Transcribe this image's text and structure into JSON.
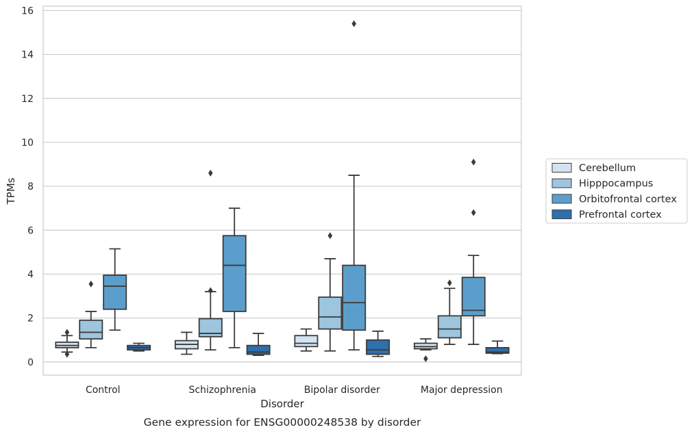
{
  "chart_data": {
    "type": "box",
    "caption": "Gene expression for ENSG00000248538 by disorder",
    "xlabel": "Disorder",
    "ylabel": "TPMs",
    "ylim": [
      -0.6,
      16.2
    ],
    "yticks": [
      0,
      2,
      4,
      6,
      8,
      10,
      12,
      14,
      16
    ],
    "grid": true,
    "legend_position": "right",
    "categories": [
      "Control",
      "Schizophrenia",
      "Bipolar disorder",
      "Major depression"
    ],
    "series": [
      {
        "name": "Cerebellum",
        "color": "#d4e3f1",
        "boxes": [
          {
            "whisker_low": 0.45,
            "q1": 0.65,
            "median": 0.75,
            "q3": 0.9,
            "whisker_high": 1.2,
            "outliers": [
              0.35,
              1.35
            ]
          },
          {
            "whisker_low": 0.35,
            "q1": 0.6,
            "median": 0.8,
            "q3": 0.97,
            "whisker_high": 1.35,
            "outliers": []
          },
          {
            "whisker_low": 0.5,
            "q1": 0.7,
            "median": 0.85,
            "q3": 1.2,
            "whisker_high": 1.5,
            "outliers": []
          },
          {
            "whisker_low": 0.55,
            "q1": 0.6,
            "median": 0.7,
            "q3": 0.85,
            "whisker_high": 1.05,
            "outliers": [
              0.15
            ]
          }
        ]
      },
      {
        "name": "Hipppocampus",
        "color": "#9dc5de",
        "boxes": [
          {
            "whisker_low": 0.65,
            "q1": 1.05,
            "median": 1.35,
            "q3": 1.9,
            "whisker_high": 2.3,
            "outliers": [
              3.55
            ]
          },
          {
            "whisker_low": 0.55,
            "q1": 1.15,
            "median": 1.3,
            "q3": 1.97,
            "whisker_high": 3.2,
            "outliers": [
              3.25,
              8.6
            ]
          },
          {
            "whisker_low": 0.5,
            "q1": 1.5,
            "median": 2.05,
            "q3": 2.95,
            "whisker_high": 4.7,
            "outliers": [
              5.75
            ]
          },
          {
            "whisker_low": 0.8,
            "q1": 1.1,
            "median": 1.5,
            "q3": 2.1,
            "whisker_high": 3.35,
            "outliers": [
              3.6
            ]
          }
        ]
      },
      {
        "name": "Orbitofrontal cortex",
        "color": "#5c9ecb",
        "boxes": [
          {
            "whisker_low": 1.45,
            "q1": 2.4,
            "median": 3.45,
            "q3": 3.95,
            "whisker_high": 5.15,
            "outliers": []
          },
          {
            "whisker_low": 0.65,
            "q1": 2.3,
            "median": 4.4,
            "q3": 5.75,
            "whisker_high": 7.0,
            "outliers": []
          },
          {
            "whisker_low": 0.55,
            "q1": 1.45,
            "median": 2.7,
            "q3": 4.4,
            "whisker_high": 8.5,
            "outliers": [
              15.4
            ]
          },
          {
            "whisker_low": 0.8,
            "q1": 2.1,
            "median": 2.35,
            "q3": 3.85,
            "whisker_high": 4.85,
            "outliers": [
              6.8,
              9.1
            ]
          }
        ]
      },
      {
        "name": "Prefrontal cortex",
        "color": "#2f6fac",
        "boxes": [
          {
            "whisker_low": 0.5,
            "q1": 0.55,
            "median": 0.65,
            "q3": 0.75,
            "whisker_high": 0.85,
            "outliers": []
          },
          {
            "whisker_low": 0.3,
            "q1": 0.35,
            "median": 0.45,
            "q3": 0.75,
            "whisker_high": 1.3,
            "outliers": []
          },
          {
            "whisker_low": 0.25,
            "q1": 0.35,
            "median": 0.55,
            "q3": 1.0,
            "whisker_high": 1.4,
            "outliers": []
          },
          {
            "whisker_low": 0.38,
            "q1": 0.4,
            "median": 0.45,
            "q3": 0.65,
            "whisker_high": 0.95,
            "outliers": []
          }
        ]
      }
    ]
  }
}
